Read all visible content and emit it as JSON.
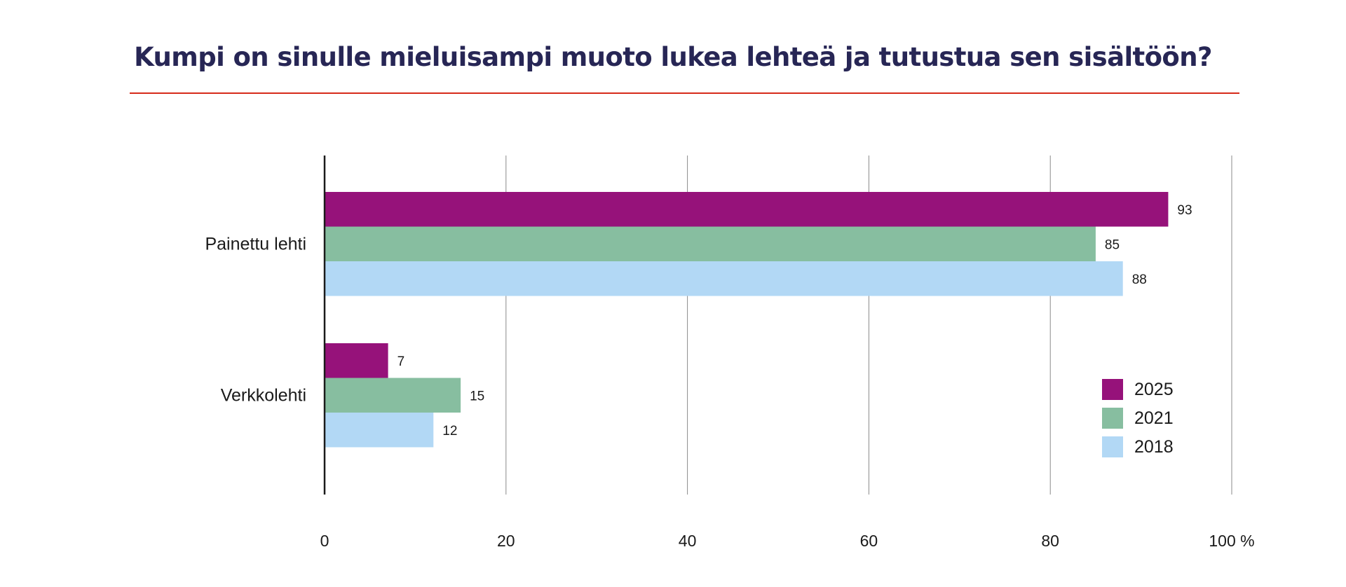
{
  "colors": {
    "title": "#272655",
    "rule": "#d62a1a",
    "series": [
      "#96127a",
      "#87bea0",
      "#b2d8f5"
    ],
    "grid": "#8a8a8a",
    "axis": "#1a1a1a"
  },
  "chart_data": {
    "type": "bar",
    "orientation": "horizontal",
    "title": "Kumpi on sinulle mieluisampi muoto lukea lehteä ja tutustua sen sisältöön?",
    "categories": [
      "Painettu lehti",
      "Verkkolehti"
    ],
    "series": [
      {
        "name": "2025",
        "values": [
          93,
          7
        ]
      },
      {
        "name": "2021",
        "values": [
          85,
          15
        ]
      },
      {
        "name": "2018",
        "values": [
          88,
          12
        ]
      }
    ],
    "xlim": [
      0,
      100
    ],
    "ticks": [
      0,
      20,
      40,
      60,
      80,
      100
    ],
    "tick_labels": [
      "0",
      "20",
      "40",
      "60",
      "80",
      "100 %"
    ],
    "grid": true,
    "legend_position": "bottom-right",
    "data_labels": true
  }
}
